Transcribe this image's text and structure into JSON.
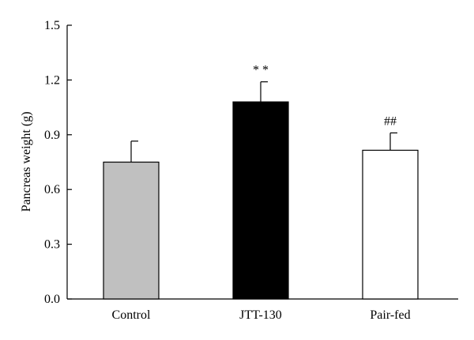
{
  "chart_data": {
    "type": "bar",
    "categories": [
      "Control",
      "JTT-130",
      "Pair-fed"
    ],
    "values": [
      0.75,
      1.08,
      0.815
    ],
    "error_upper": [
      0.115,
      0.11,
      0.095
    ],
    "colors": [
      "#c0c0c0",
      "#000000",
      "#ffffff"
    ],
    "annotations": [
      "",
      "* *",
      "##"
    ],
    "title": "",
    "xlabel": "",
    "ylabel": "Pancreas weight (g)",
    "ylim": [
      0,
      1.5
    ],
    "yticks": [
      "0.0",
      "0.3",
      "0.6",
      "0.9",
      "1.2",
      "1.5"
    ],
    "grid": false
  }
}
